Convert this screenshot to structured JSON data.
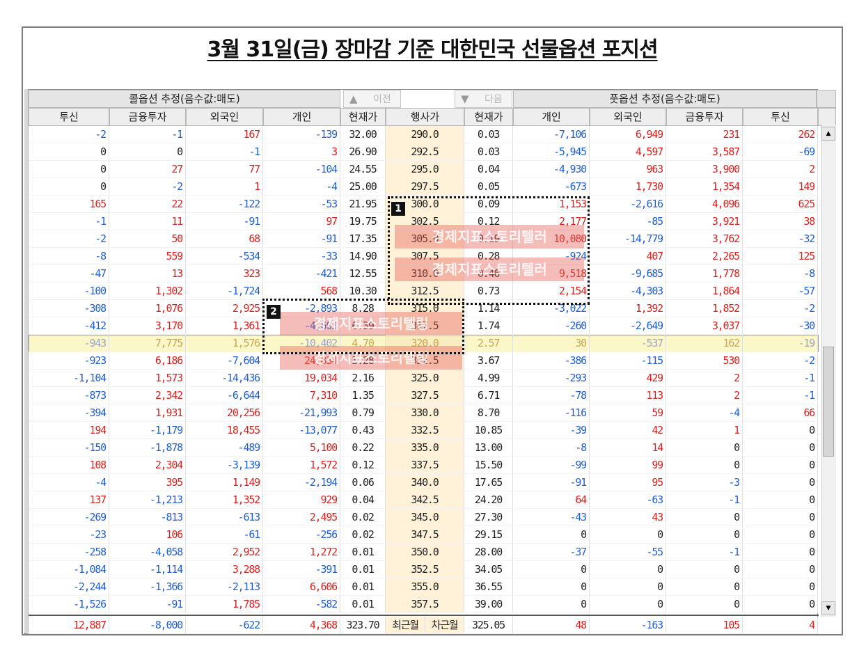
{
  "title": "3월 31일(금) 장마감 기준 대한민국 선물옵션 포지션",
  "header": {
    "call_group": "콜옵션 추정(음수값:매도)",
    "put_group": "풋옵션 추정(음수값:매도)",
    "prev_label": "이전",
    "next_label": "다음",
    "columns": [
      "투신",
      "금융투자",
      "외국인",
      "개인",
      "현재가",
      "행사가",
      "현재가",
      "개인",
      "외국인",
      "금융투자",
      "투신"
    ]
  },
  "rows": [
    [
      "-2",
      "-1",
      "167",
      "-139",
      "32.00",
      "290.0",
      "0.03",
      "-7,106",
      "6,949",
      "231",
      "262"
    ],
    [
      "0",
      "0",
      "-1",
      "3",
      "26.90",
      "292.5",
      "0.03",
      "-5,945",
      "4,597",
      "3,587",
      "-69"
    ],
    [
      "0",
      "27",
      "77",
      "-104",
      "24.55",
      "295.0",
      "0.04",
      "-4,930",
      "963",
      "3,900",
      "2"
    ],
    [
      "0",
      "-2",
      "1",
      "-4",
      "25.00",
      "297.5",
      "0.05",
      "-673",
      "1,730",
      "1,354",
      "149"
    ],
    [
      "165",
      "22",
      "-122",
      "-53",
      "21.95",
      "300.0",
      "0.09",
      "1,153",
      "-2,616",
      "4,096",
      "625"
    ],
    [
      "-1",
      "11",
      "-91",
      "97",
      "19.75",
      "302.5",
      "0.12",
      "2,177",
      "-85",
      "3,921",
      "38"
    ],
    [
      "-2",
      "50",
      "68",
      "-91",
      "17.35",
      "305.0",
      "0.19",
      "10,080",
      "-14,779",
      "3,762",
      "-32"
    ],
    [
      "-8",
      "559",
      "-534",
      "-33",
      "14.90",
      "307.5",
      "0.28",
      "-924",
      "407",
      "2,265",
      "125"
    ],
    [
      "-47",
      "13",
      "323",
      "-421",
      "12.55",
      "310.0",
      "0.46",
      "9,518",
      "-9,685",
      "1,778",
      "-8"
    ],
    [
      "-100",
      "1,302",
      "-1,724",
      "568",
      "10.30",
      "312.5",
      "0.73",
      "2,154",
      "-4,303",
      "1,864",
      "-57"
    ],
    [
      "-308",
      "1,076",
      "2,925",
      "-2,893",
      "8.28",
      "315.0",
      "1.14",
      "-3,022",
      "1,392",
      "1,852",
      "-2"
    ],
    [
      "-412",
      "3,170",
      "1,361",
      "-4,603",
      "6.39",
      "317.5",
      "1.74",
      "-260",
      "-2,649",
      "3,037",
      "-30"
    ],
    [
      "-943",
      "7,775",
      "1,576",
      "-10,402",
      "4.70",
      "320.0",
      "2.57",
      "30",
      "-537",
      "162",
      "-19"
    ],
    [
      "-923",
      "6,186",
      "-7,604",
      "24,834",
      "3.28",
      "322.5",
      "3.67",
      "-386",
      "-115",
      "530",
      "-2"
    ],
    [
      "-1,104",
      "1,573",
      "-14,436",
      "19,034",
      "2.16",
      "325.0",
      "4.99",
      "-293",
      "429",
      "2",
      "-1"
    ],
    [
      "-873",
      "2,342",
      "-6,644",
      "7,310",
      "1.35",
      "327.5",
      "6.71",
      "-78",
      "113",
      "2",
      "-1"
    ],
    [
      "-394",
      "1,931",
      "20,256",
      "-21,993",
      "0.79",
      "330.0",
      "8.70",
      "-116",
      "59",
      "-4",
      "66"
    ],
    [
      "194",
      "-1,179",
      "18,455",
      "-13,077",
      "0.43",
      "332.5",
      "10.85",
      "-39",
      "42",
      "1",
      "0"
    ],
    [
      "-150",
      "-1,878",
      "-489",
      "5,100",
      "0.22",
      "335.0",
      "13.00",
      "-8",
      "14",
      "0",
      "0"
    ],
    [
      "108",
      "2,304",
      "-3,139",
      "1,572",
      "0.12",
      "337.5",
      "15.50",
      "-99",
      "99",
      "0",
      "0"
    ],
    [
      "-4",
      "395",
      "1,149",
      "-2,194",
      "0.06",
      "340.0",
      "17.65",
      "-91",
      "95",
      "-3",
      "0"
    ],
    [
      "137",
      "-1,213",
      "1,352",
      "929",
      "0.04",
      "342.5",
      "24.20",
      "64",
      "-63",
      "-1",
      "0"
    ],
    [
      "-269",
      "-813",
      "-613",
      "2,495",
      "0.02",
      "345.0",
      "27.30",
      "-43",
      "43",
      "0",
      "0"
    ],
    [
      "-23",
      "106",
      "-61",
      "-256",
      "0.02",
      "347.5",
      "29.15",
      "0",
      "0",
      "0",
      "0"
    ],
    [
      "-258",
      "-4,058",
      "2,952",
      "1,272",
      "0.01",
      "350.0",
      "28.00",
      "-37",
      "-55",
      "-1",
      "0"
    ],
    [
      "-1,084",
      "-1,114",
      "3,288",
      "-391",
      "0.01",
      "352.5",
      "34.05",
      "0",
      "0",
      "0",
      "0"
    ],
    [
      "-2,244",
      "-1,366",
      "-2,113",
      "6,606",
      "0.01",
      "355.0",
      "36.55",
      "0",
      "0",
      "0",
      "0"
    ],
    [
      "-1,526",
      "-91",
      "1,785",
      "-582",
      "0.01",
      "357.5",
      "39.00",
      "0",
      "0",
      "0",
      "0"
    ]
  ],
  "atm_row_index": 12,
  "footer": [
    "12,887",
    "-8,000",
    "-622",
    "4,368",
    "323.70",
    "최근월",
    "차근월",
    "325.05",
    "48",
    "-163",
    "105",
    "4"
  ],
  "annotations": [
    {
      "badge": "1",
      "watermark_lines": [
        "경제지표스토리텔러",
        "경제지표스토리텔러"
      ]
    },
    {
      "badge": "2",
      "watermark_lines": [
        "경제지표스토리텔링",
        "경제지표스토리텔링"
      ]
    }
  ],
  "icons": {
    "prev": "up-triangle-icon",
    "next": "down-triangle-icon",
    "scroll_up": "scroll-up-icon",
    "scroll_down": "scroll-down-icon"
  }
}
